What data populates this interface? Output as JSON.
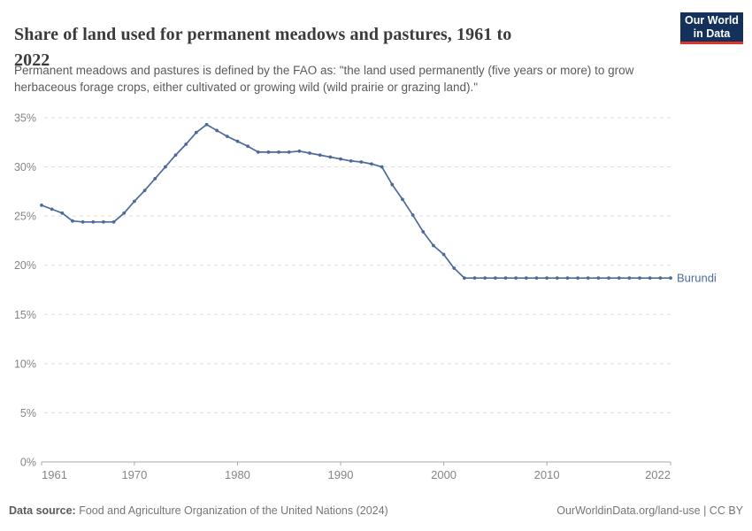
{
  "header": {
    "title_lines": [
      "Share of land used for permanent meadows and pastures, 1961 to",
      "2022"
    ],
    "subtitle_lines": [
      "Permanent meadows and pastures is defined by the FAO as: \"the land used permanently (five years or more) to grow",
      "herbaceous forage crops, either cultivated or growing wild (wild prairie or grazing land).\""
    ],
    "logo": {
      "line1": "Our World",
      "line2": "in Data",
      "bg_color": "#13315b",
      "bar_color": "#dd352c"
    }
  },
  "chart_data": {
    "type": "line",
    "title": "Share of land used for permanent meadows and pastures, 1961 to 2022",
    "xlabel": "",
    "ylabel": "",
    "xlim": [
      1961,
      2022
    ],
    "ylim": [
      0,
      35
    ],
    "x_ticks": [
      1961,
      1970,
      1980,
      1990,
      2000,
      2010,
      2022
    ],
    "y_ticks": [
      0,
      5,
      10,
      15,
      20,
      25,
      30,
      35
    ],
    "y_tick_suffix": "%",
    "grid": true,
    "grid_color": "#dddddd",
    "axis_line_color": "#a8a8a8",
    "axis_label_color": "#858585",
    "legend_position": "end-of-line-label",
    "series": [
      {
        "name": "Burundi",
        "color": "#4c6a9c",
        "x": [
          1961,
          1962,
          1963,
          1964,
          1965,
          1966,
          1967,
          1968,
          1969,
          1970,
          1971,
          1972,
          1973,
          1974,
          1975,
          1976,
          1977,
          1978,
          1979,
          1980,
          1981,
          1982,
          1983,
          1984,
          1985,
          1986,
          1987,
          1988,
          1989,
          1990,
          1991,
          1992,
          1993,
          1994,
          1995,
          1996,
          1997,
          1998,
          1999,
          2000,
          2001,
          2002,
          2003,
          2004,
          2005,
          2006,
          2007,
          2008,
          2009,
          2010,
          2011,
          2012,
          2013,
          2014,
          2015,
          2016,
          2017,
          2018,
          2019,
          2020,
          2021,
          2022
        ],
        "values": [
          26.1,
          25.7,
          25.3,
          24.5,
          24.4,
          24.4,
          24.4,
          24.4,
          25.3,
          26.5,
          27.6,
          28.8,
          30.0,
          31.2,
          32.3,
          33.5,
          34.3,
          33.7,
          33.1,
          32.6,
          32.1,
          31.5,
          31.5,
          31.5,
          31.5,
          31.6,
          31.4,
          31.2,
          31.0,
          30.8,
          30.6,
          30.5,
          30.3,
          30.0,
          28.2,
          26.7,
          25.1,
          23.4,
          22.0,
          21.1,
          19.7,
          18.7,
          18.7,
          18.7,
          18.7,
          18.7,
          18.7,
          18.7,
          18.7,
          18.7,
          18.7,
          18.7,
          18.7,
          18.7,
          18.7,
          18.7,
          18.7,
          18.7,
          18.7,
          18.7,
          18.7,
          18.7
        ]
      }
    ]
  },
  "footer": {
    "source_label": "Data source:",
    "source_text": " Food and Agriculture Organization of the United Nations (2024)",
    "right_text": "OurWorldinData.org/land-use | CC BY"
  }
}
